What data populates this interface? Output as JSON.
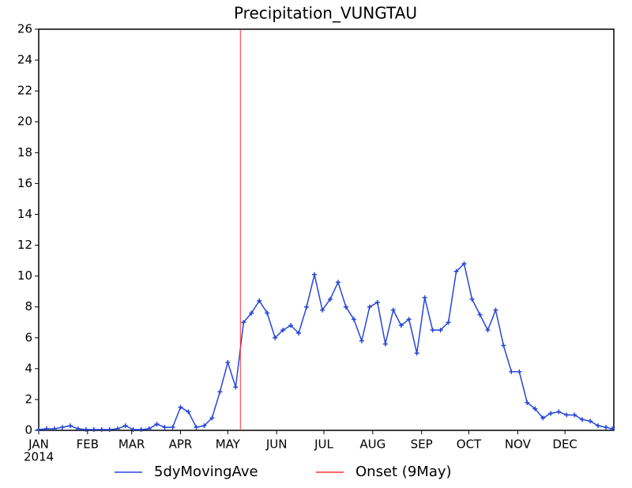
{
  "chart_data": {
    "type": "line",
    "title": "Precipitation_VUNGTAU",
    "year_label": "2014",
    "xlim": [
      1,
      366
    ],
    "xticks": [
      {
        "value": 1,
        "label": "JAN"
      },
      {
        "value": 32,
        "label": "FEB"
      },
      {
        "value": 60,
        "label": "MAR"
      },
      {
        "value": 91,
        "label": "APR"
      },
      {
        "value": 121,
        "label": "MAY"
      },
      {
        "value": 152,
        "label": "JUN"
      },
      {
        "value": 182,
        "label": "JUL"
      },
      {
        "value": 213,
        "label": "AUG"
      },
      {
        "value": 244,
        "label": "SEP"
      },
      {
        "value": 274,
        "label": "OCT"
      },
      {
        "value": 305,
        "label": "NOV"
      },
      {
        "value": 335,
        "label": "DEC"
      }
    ],
    "ylim": [
      0,
      26
    ],
    "yticks": [
      0,
      2,
      4,
      6,
      8,
      10,
      12,
      14,
      16,
      18,
      20,
      22,
      24,
      26
    ],
    "legend": "bottom",
    "series": [
      {
        "name": "5dyMovingAve",
        "color": "#2646d8",
        "x": [
          1,
          6,
          11,
          16,
          21,
          26,
          31,
          36,
          41,
          46,
          51,
          56,
          61,
          66,
          71,
          76,
          81,
          86,
          91,
          96,
          101,
          106,
          111,
          116,
          121,
          126,
          131,
          136,
          141,
          146,
          151,
          156,
          161,
          166,
          171,
          176,
          181,
          186,
          191,
          196,
          201,
          206,
          211,
          216,
          221,
          226,
          231,
          236,
          241,
          246,
          251,
          256,
          261,
          266,
          271,
          276,
          281,
          286,
          291,
          296,
          301,
          306,
          311,
          316,
          321,
          326,
          331,
          336,
          341,
          346,
          351,
          356,
          361,
          365
        ],
        "values": [
          0.05,
          0.1,
          0.1,
          0.2,
          0.3,
          0.1,
          0.05,
          0.05,
          0.05,
          0.05,
          0.1,
          0.3,
          0.05,
          0.05,
          0.1,
          0.4,
          0.2,
          0.2,
          1.5,
          1.2,
          0.2,
          0.3,
          0.8,
          2.5,
          4.4,
          2.8,
          7.0,
          7.6,
          8.4,
          7.6,
          6.0,
          6.5,
          6.8,
          6.3,
          8.0,
          10.1,
          7.8,
          8.5,
          9.6,
          8.0,
          7.2,
          5.8,
          8.0,
          8.3,
          5.6,
          7.8,
          6.8,
          7.2,
          5.0,
          8.6,
          6.5,
          6.5,
          7.0,
          10.3,
          10.8,
          8.5,
          7.5,
          6.5,
          7.8,
          5.5,
          3.8,
          3.8,
          1.8,
          1.4,
          0.8,
          1.1,
          1.2,
          1.0,
          1.0,
          0.7,
          0.6,
          0.3,
          0.2,
          0.1
        ]
      },
      {
        "name": "Onset (9May)",
        "color": "#ff3030",
        "x": 129
      }
    ]
  }
}
